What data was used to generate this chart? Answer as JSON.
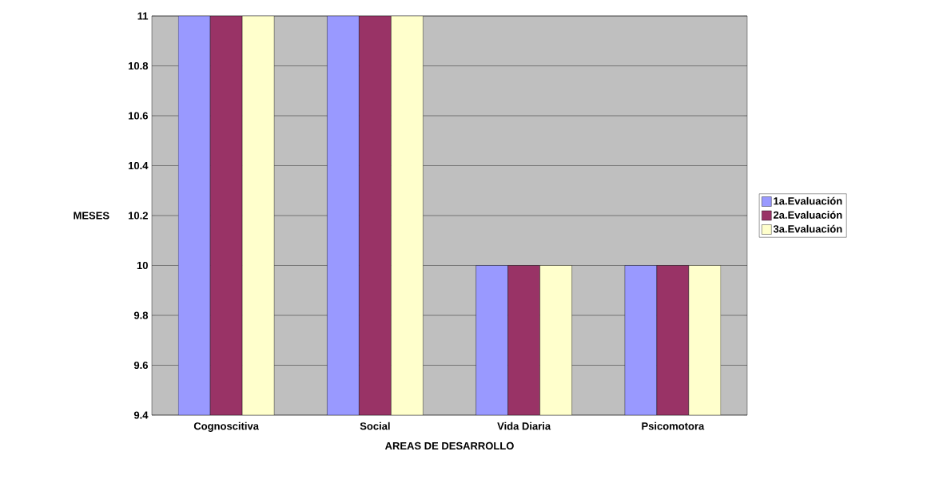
{
  "chart_data": {
    "type": "bar",
    "xlabel": "AREAS DE DESARROLLO",
    "ylabel": "MESES",
    "categories": [
      "Cognoscitiva",
      "Social",
      "Vida Diaria",
      "Psicomotora"
    ],
    "series": [
      {
        "name": "1a.Evaluación",
        "color": "#9999ff",
        "values": [
          11,
          11,
          10,
          10
        ]
      },
      {
        "name": "2a.Evaluación",
        "color": "#993366",
        "values": [
          11,
          11,
          10,
          10
        ]
      },
      {
        "name": "3a.Evaluación",
        "color": "#ffffcc",
        "values": [
          11,
          11,
          10,
          10
        ]
      }
    ],
    "ylim": [
      9.4,
      11
    ],
    "yticks": [
      9.4,
      9.6,
      9.8,
      10,
      10.2,
      10.4,
      10.6,
      10.8,
      11
    ],
    "grid": "y",
    "legend": "right"
  }
}
